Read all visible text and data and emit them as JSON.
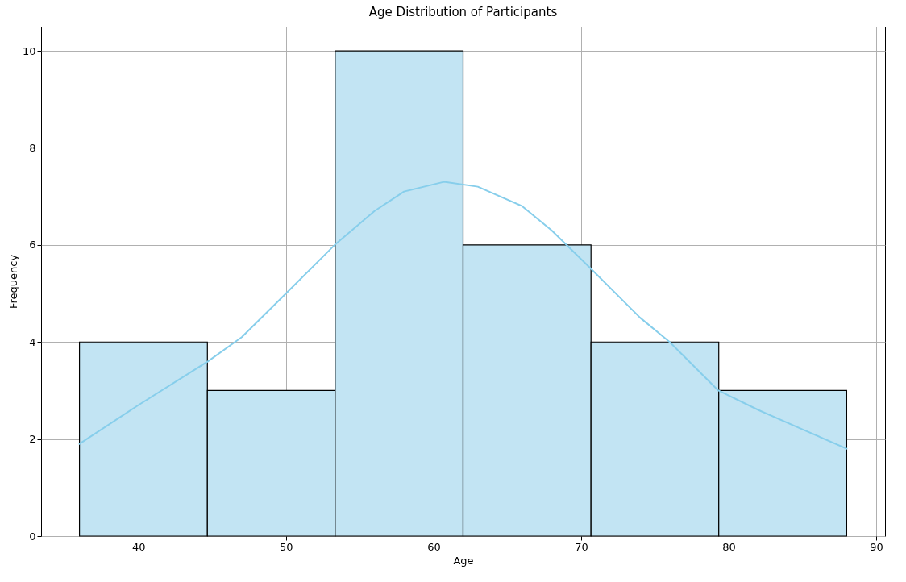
{
  "chart_data": {
    "type": "histogram",
    "title": "Age Distribution of Participants",
    "xlabel": "Age",
    "ylabel": "Frequency",
    "bins": [
      36,
      44.67,
      53.33,
      62,
      70.67,
      79.33,
      88
    ],
    "values": [
      4,
      3,
      10,
      6,
      4,
      3
    ],
    "color": "#c2e4f3",
    "series": [
      {
        "type": "line",
        "color": "#87ceeb",
        "x": [
          36,
          40,
          44.7,
          47,
          50,
          53.3,
          56,
          58,
          60.7,
          63,
          66,
          68,
          70.7,
          74,
          76,
          79.3,
          82,
          85,
          88
        ],
        "values": [
          1.9,
          2.7,
          3.6,
          4.1,
          5,
          6,
          6.7,
          7.1,
          7.3,
          7.2,
          6.8,
          6.3,
          5.5,
          4.5,
          4,
          3,
          2.6,
          2.2,
          1.8
        ]
      }
    ],
    "xlim": [
      33.4,
      90.6
    ],
    "xticks": [
      40,
      50,
      60,
      70,
      80,
      90
    ],
    "ylim": [
      0,
      10.5
    ],
    "yticks": [
      0,
      2,
      4,
      6,
      8,
      10
    ],
    "grid": true
  }
}
